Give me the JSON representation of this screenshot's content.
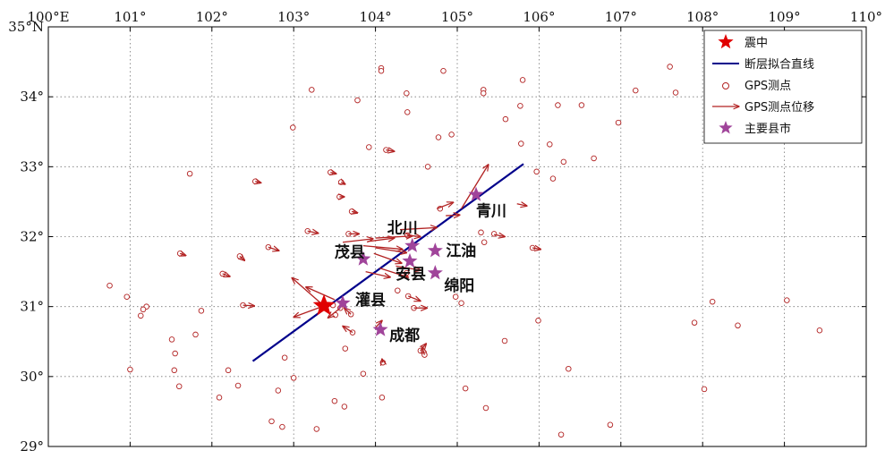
{
  "map": {
    "x_ticks": [
      "100°E",
      "101°",
      "102°",
      "103°",
      "104°",
      "105°",
      "106°",
      "107°",
      "108°",
      "109°",
      "110°"
    ],
    "y_ticks": [
      "35°N",
      "34°",
      "33°",
      "32°",
      "31°",
      "30°",
      "29°"
    ],
    "lon_range": [
      100,
      110
    ],
    "lat_range": [
      29,
      35
    ],
    "grid": "dotted",
    "colors": {
      "epicenter": "#e00000",
      "fault_line": "#00008b",
      "gps_station": "#b22222",
      "displacement": "#b22222",
      "city": "#a0449a"
    }
  },
  "legend": {
    "placement": "top-right",
    "items": [
      {
        "label": "震中",
        "icon": "red-star"
      },
      {
        "label": "断层拟合直线",
        "icon": "blue-line"
      },
      {
        "label": "GPS测点",
        "icon": "circle"
      },
      {
        "label": "GPS测点位移",
        "icon": "arrow"
      },
      {
        "label": "主要县市",
        "icon": "purple-star"
      }
    ]
  },
  "epicenter": {
    "lon": 103.37,
    "lat": 31.01
  },
  "fault_line": {
    "from": [
      102.5,
      30.22
    ],
    "to": [
      105.81,
      33.04
    ]
  },
  "cities": [
    {
      "name": "青川",
      "lon": 105.23,
      "lat": 32.6
    },
    {
      "name": "北川",
      "lon": 104.45,
      "lat": 31.87
    },
    {
      "name": "茂县",
      "lon": 103.85,
      "lat": 31.68
    },
    {
      "name": "江油",
      "lon": 104.73,
      "lat": 31.8
    },
    {
      "name": "安县",
      "lon": 104.42,
      "lat": 31.65
    },
    {
      "name": "绵阳",
      "lon": 104.73,
      "lat": 31.48
    },
    {
      "name": "灌县",
      "lon": 103.6,
      "lat": 31.05
    },
    {
      "name": "成都",
      "lon": 104.06,
      "lat": 30.67
    }
  ],
  "gps_stations": [
    [
      100.75,
      31.3
    ],
    [
      100.96,
      31.14
    ],
    [
      101.0,
      30.1
    ],
    [
      101.13,
      30.87
    ],
    [
      101.2,
      31.0
    ],
    [
      101.16,
      30.96
    ],
    [
      101.73,
      32.9
    ],
    [
      101.61,
      31.76
    ],
    [
      101.51,
      30.53
    ],
    [
      101.55,
      30.33
    ],
    [
      101.54,
      30.09
    ],
    [
      101.6,
      29.86
    ],
    [
      101.8,
      30.6
    ],
    [
      101.87,
      30.94
    ],
    [
      102.13,
      31.47
    ],
    [
      102.09,
      29.7
    ],
    [
      102.2,
      30.09
    ],
    [
      102.34,
      31.72
    ],
    [
      102.32,
      29.87
    ],
    [
      102.38,
      31.02
    ],
    [
      102.53,
      32.79
    ],
    [
      102.69,
      31.85
    ],
    [
      102.81,
      29.8
    ],
    [
      102.89,
      30.27
    ],
    [
      102.73,
      29.36
    ],
    [
      102.86,
      29.28
    ],
    [
      102.99,
      33.56
    ],
    [
      103.0,
      29.98
    ],
    [
      103.22,
      34.1
    ],
    [
      103.17,
      32.08
    ],
    [
      103.28,
      29.25
    ],
    [
      103.45,
      32.92
    ],
    [
      103.48,
      31.02
    ],
    [
      103.51,
      30.88
    ],
    [
      103.57,
      30.98
    ],
    [
      103.56,
      32.57
    ],
    [
      103.58,
      32.78
    ],
    [
      103.67,
      32.04
    ],
    [
      103.71,
      32.36
    ],
    [
      103.78,
      33.95
    ],
    [
      103.7,
      30.89
    ],
    [
      103.72,
      30.63
    ],
    [
      103.63,
      30.4
    ],
    [
      103.62,
      29.57
    ],
    [
      103.5,
      29.65
    ],
    [
      103.85,
      30.04
    ],
    [
      103.92,
      33.28
    ],
    [
      104.07,
      34.41
    ],
    [
      104.07,
      34.37
    ],
    [
      104.13,
      33.24
    ],
    [
      104.09,
      30.2
    ],
    [
      104.08,
      29.7
    ],
    [
      104.27,
      31.23
    ],
    [
      104.38,
      31.48
    ],
    [
      104.38,
      34.05
    ],
    [
      104.39,
      33.78
    ],
    [
      104.39,
      32.02
    ],
    [
      104.4,
      31.15
    ],
    [
      104.47,
      30.98
    ],
    [
      104.55,
      30.37
    ],
    [
      104.6,
      30.31
    ],
    [
      104.64,
      33.0
    ],
    [
      104.83,
      34.37
    ],
    [
      104.79,
      32.4
    ],
    [
      104.77,
      33.42
    ],
    [
      104.93,
      33.46
    ],
    [
      104.98,
      31.14
    ],
    [
      105.05,
      31.05
    ],
    [
      105.1,
      29.83
    ],
    [
      105.29,
      32.06
    ],
    [
      105.32,
      34.1
    ],
    [
      105.32,
      34.05
    ],
    [
      105.35,
      29.55
    ],
    [
      105.33,
      31.92
    ],
    [
      105.45,
      32.04
    ],
    [
      105.58,
      30.51
    ],
    [
      105.59,
      33.68
    ],
    [
      105.8,
      34.24
    ],
    [
      105.77,
      33.87
    ],
    [
      105.78,
      33.33
    ],
    [
      105.92,
      31.84
    ],
    [
      105.97,
      32.93
    ],
    [
      105.99,
      30.8
    ],
    [
      106.13,
      33.32
    ],
    [
      106.17,
      32.83
    ],
    [
      106.23,
      33.88
    ],
    [
      106.27,
      29.17
    ],
    [
      106.3,
      33.07
    ],
    [
      106.36,
      30.11
    ],
    [
      106.52,
      33.88
    ],
    [
      106.67,
      33.12
    ],
    [
      106.87,
      29.31
    ],
    [
      106.97,
      33.63
    ],
    [
      107.18,
      34.09
    ],
    [
      107.6,
      34.43
    ],
    [
      107.67,
      34.06
    ],
    [
      108.02,
      29.82
    ],
    [
      107.9,
      30.77
    ],
    [
      108.12,
      31.07
    ],
    [
      108.43,
      30.73
    ],
    [
      108.05,
      33.5
    ],
    [
      109.03,
      31.09
    ],
    [
      109.43,
      30.66
    ]
  ],
  "displacements": [
    [
      103.37,
      31.01,
      102.98,
      31.41
    ],
    [
      103.37,
      31.01,
      103.0,
      30.85
    ],
    [
      103.5,
      31.1,
      103.15,
      31.28
    ],
    [
      103.57,
      30.98,
      103.42,
      30.84
    ],
    [
      103.7,
      30.89,
      103.62,
      30.98
    ],
    [
      103.72,
      30.63,
      103.6,
      30.72
    ],
    [
      103.56,
      32.57,
      103.62,
      32.57
    ],
    [
      103.58,
      32.78,
      103.63,
      32.75
    ],
    [
      103.71,
      32.36,
      103.78,
      32.34
    ],
    [
      103.67,
      32.04,
      103.8,
      32.04
    ],
    [
      103.6,
      31.92,
      103.97,
      31.97
    ],
    [
      103.9,
      31.93,
      104.23,
      31.98
    ],
    [
      104.0,
      31.98,
      104.45,
      32.01
    ],
    [
      104.0,
      31.84,
      104.38,
      31.77
    ],
    [
      103.85,
      31.87,
      104.33,
      31.82
    ],
    [
      103.98,
      31.76,
      104.32,
      31.62
    ],
    [
      103.88,
      31.5,
      104.18,
      31.42
    ],
    [
      104.05,
      31.55,
      104.4,
      31.42
    ],
    [
      104.25,
      31.58,
      104.55,
      31.52
    ],
    [
      104.3,
      32.1,
      104.75,
      32.13
    ],
    [
      104.75,
      32.4,
      104.95,
      32.49
    ],
    [
      104.86,
      32.3,
      105.03,
      32.31
    ],
    [
      105.05,
      32.4,
      105.38,
      33.03
    ],
    [
      105.73,
      32.47,
      105.85,
      32.44
    ],
    [
      105.45,
      32.03,
      105.58,
      32.0
    ],
    [
      105.92,
      31.84,
      106.02,
      31.82
    ],
    [
      104.4,
      31.15,
      104.55,
      31.08
    ],
    [
      104.47,
      30.98,
      104.63,
      30.98
    ],
    [
      104.55,
      30.37,
      104.62,
      30.47
    ],
    [
      104.6,
      30.31,
      104.57,
      30.42
    ],
    [
      104.09,
      30.2,
      104.08,
      30.25
    ],
    [
      104.0,
      30.7,
      104.08,
      30.8
    ],
    [
      104.13,
      33.24,
      104.23,
      33.22
    ],
    [
      103.17,
      32.08,
      103.3,
      32.05
    ],
    [
      102.53,
      32.79,
      102.6,
      32.77
    ],
    [
      102.69,
      31.85,
      102.82,
      31.8
    ],
    [
      102.34,
      31.72,
      102.4,
      31.66
    ],
    [
      102.13,
      31.47,
      102.22,
      31.43
    ],
    [
      102.38,
      31.02,
      102.52,
      31.01
    ],
    [
      101.61,
      31.76,
      101.68,
      31.73
    ],
    [
      103.45,
      32.92,
      103.52,
      32.9
    ],
    [
      104.39,
      32.02,
      104.55,
      32.0
    ]
  ]
}
